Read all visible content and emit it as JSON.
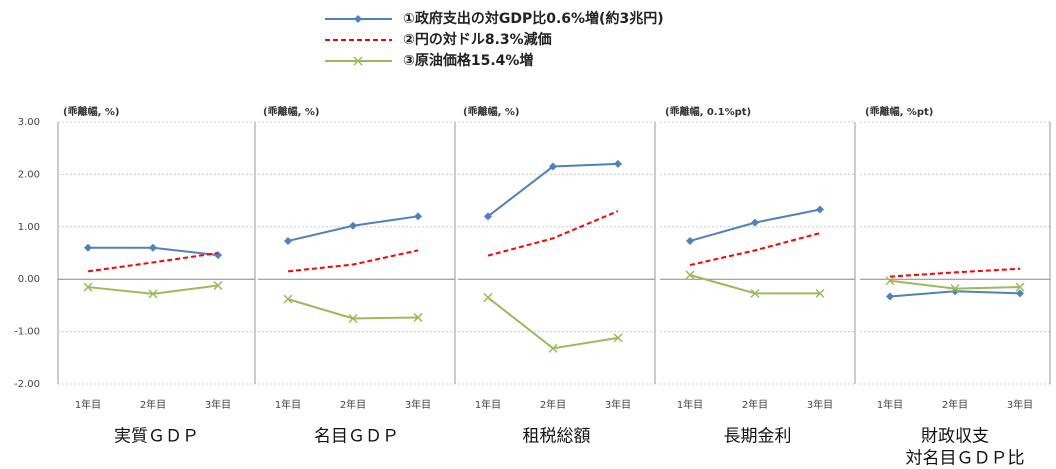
{
  "chart_data": {
    "type": "line",
    "series": [
      {
        "name": "①政府支出の対GDP比0.6%増(約3兆円)",
        "color": "#4f81bd",
        "marker": "diamond",
        "dash": false
      },
      {
        "name": "②円の対ドル8.3%減価",
        "color": "#ff0000",
        "marker": "none",
        "dash": true
      },
      {
        "name": "③原油価格15.4%増",
        "color": "#9bbb59",
        "marker": "x",
        "dash": false
      }
    ],
    "categories": [
      "1年目",
      "2年目",
      "3年目"
    ],
    "ylim": [
      -2,
      3
    ],
    "yticks": [
      {
        "value": -2,
        "label": "-2.00"
      },
      {
        "value": -1,
        "label": "-1.00"
      },
      {
        "value": 0,
        "label": "0.00"
      },
      {
        "value": 1,
        "label": "1.00"
      },
      {
        "value": 2,
        "label": "2.00"
      },
      {
        "value": 3,
        "label": "3.00"
      }
    ],
    "grid": true,
    "panels": [
      {
        "title": "実質ＧＤＰ",
        "unit": "(乖離幅, %)",
        "values": [
          [
            0.6,
            0.6,
            0.46
          ],
          [
            0.15,
            0.32,
            0.5
          ],
          [
            -0.15,
            -0.28,
            -0.12
          ]
        ]
      },
      {
        "title": "名目ＧＤＰ",
        "unit": "(乖離幅, %)",
        "values": [
          [
            0.73,
            1.02,
            1.2
          ],
          [
            0.15,
            0.28,
            0.55
          ],
          [
            -0.38,
            -0.75,
            -0.73
          ]
        ]
      },
      {
        "title": "租税総額",
        "unit": "(乖離幅, %)",
        "values": [
          [
            1.2,
            2.15,
            2.2
          ],
          [
            0.45,
            0.78,
            1.3
          ],
          [
            -0.35,
            -1.32,
            -1.12
          ]
        ]
      },
      {
        "title": "長期金利",
        "unit": "(乖離幅, 0.1%pt)",
        "values": [
          [
            0.73,
            1.08,
            1.33
          ],
          [
            0.27,
            0.55,
            0.88
          ],
          [
            0.08,
            -0.27,
            -0.27
          ]
        ]
      },
      {
        "title": "財政収支",
        "subtitle": "対名目ＧＤＰ比",
        "unit": "(乖離幅, %pt)",
        "values": [
          [
            -0.33,
            -0.23,
            -0.27
          ],
          [
            0.05,
            0.13,
            0.2
          ],
          [
            -0.03,
            -0.18,
            -0.15
          ]
        ]
      }
    ]
  }
}
